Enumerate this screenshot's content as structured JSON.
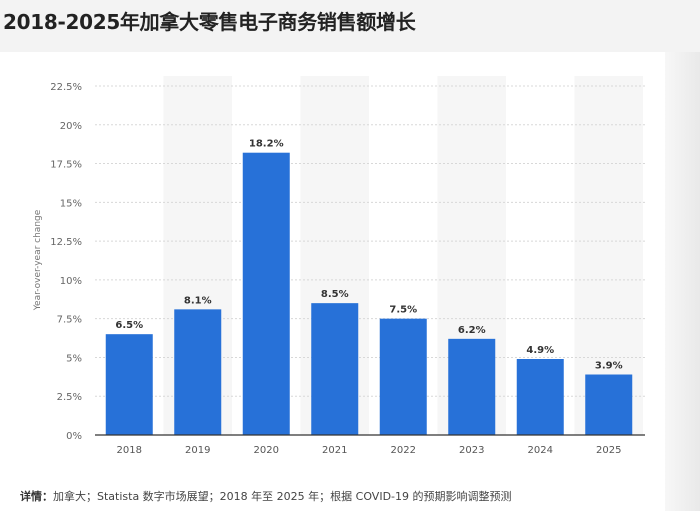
{
  "title": "2018-2025年加拿大零售电子商务销售额增长",
  "footer": {
    "label": "详情：",
    "text": "加拿大；Statista 数字市场展望；2018 年至 2025 年；根据 COVID-19 的预期影响调整预测"
  },
  "chart_data": {
    "type": "bar",
    "categories": [
      "2018",
      "2019",
      "2020",
      "2021",
      "2022",
      "2023",
      "2024",
      "2025"
    ],
    "values": [
      6.5,
      8.1,
      18.2,
      8.5,
      7.5,
      6.2,
      4.9,
      3.9
    ],
    "data_labels": [
      "6.5%",
      "8.1%",
      "18.2%",
      "8.5%",
      "7.5%",
      "6.2%",
      "4.9%",
      "3.9%"
    ],
    "ylabel": "Year-over-year change",
    "ylim": [
      0,
      22.5
    ],
    "yticks": [
      "0%",
      "2.5%",
      "5%",
      "7.5%",
      "10%",
      "12.5%",
      "15%",
      "17.5%",
      "20%",
      "22.5%"
    ],
    "grid": true,
    "bar_color": "#2771d8"
  }
}
